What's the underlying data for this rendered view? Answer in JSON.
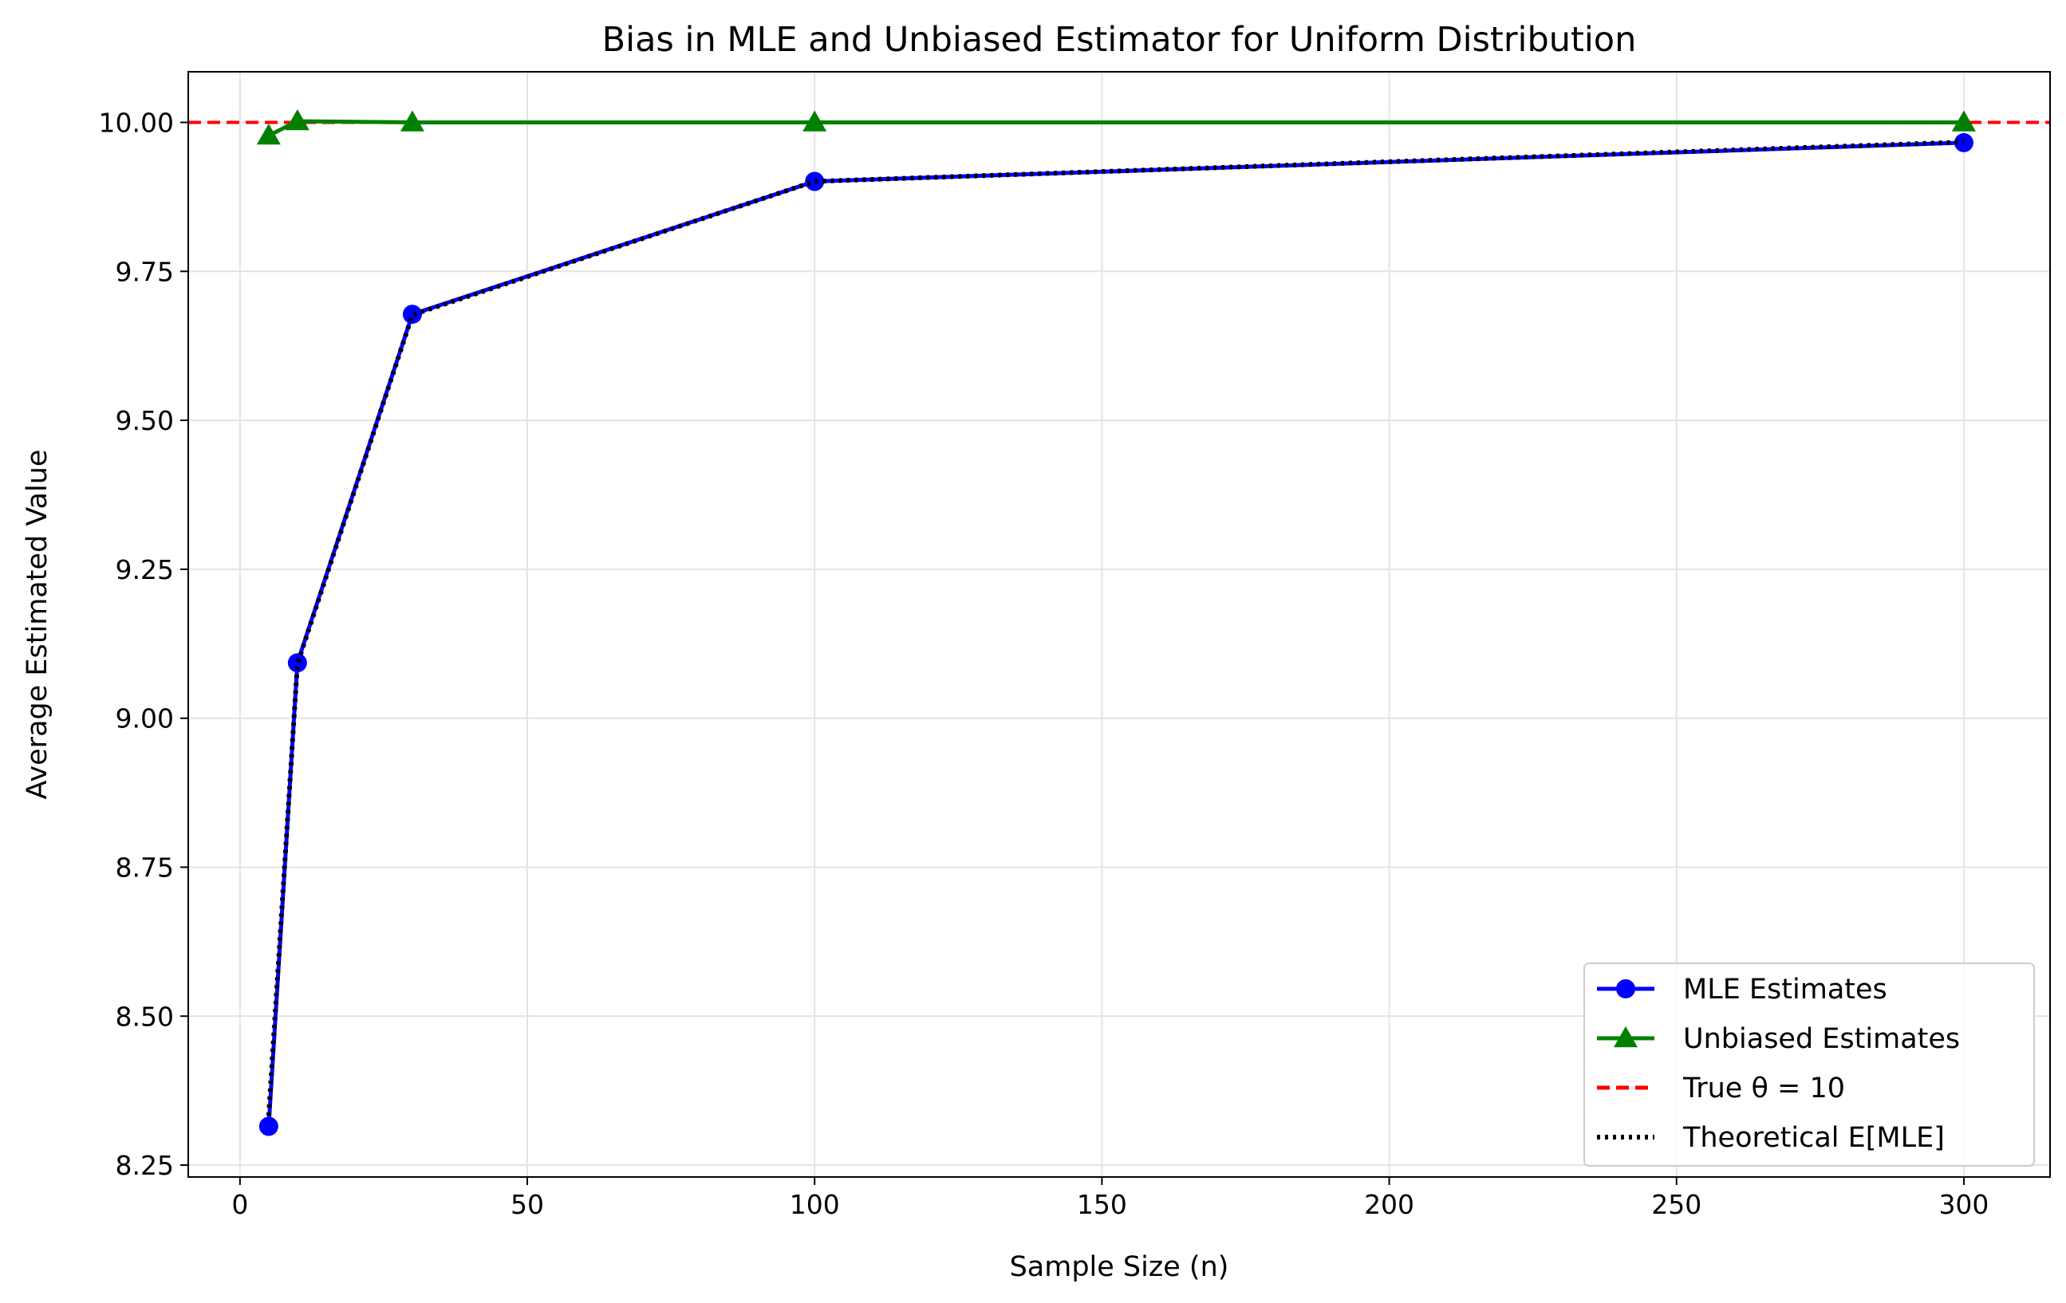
{
  "chart_data": {
    "type": "line",
    "title": "Bias in MLE and Unbiased Estimator for Uniform Distribution",
    "xlabel": "Sample Size (n)",
    "ylabel": "Average Estimated Value",
    "xlim": [
      -9,
      315
    ],
    "ylim": [
      8.23,
      10.085
    ],
    "xticks": [
      0,
      50,
      100,
      150,
      200,
      250,
      300
    ],
    "yticks": [
      8.25,
      8.5,
      8.75,
      9.0,
      9.25,
      9.5,
      9.75,
      10.0
    ],
    "xtick_labels": [
      "0",
      "50",
      "100",
      "150",
      "200",
      "250",
      "300"
    ],
    "ytick_labels": [
      "8.25",
      "8.50",
      "8.75",
      "9.00",
      "9.25",
      "9.50",
      "9.75",
      "10.00"
    ],
    "grid": true,
    "legend_position": "lower-right",
    "x": [
      5,
      10,
      30,
      100,
      300
    ],
    "series": [
      {
        "name": "MLE Estimates",
        "color": "#0000ff",
        "style": "solid",
        "marker": "circle",
        "values": [
          8.315,
          9.093,
          9.678,
          9.901,
          9.966
        ]
      },
      {
        "name": "Unbiased Estimates",
        "color": "#008000",
        "style": "solid",
        "marker": "triangle",
        "values": [
          9.978,
          10.002,
          10.0,
          10.0,
          10.0
        ]
      },
      {
        "name": "Theoretical E[MLE]",
        "color": "#000000",
        "style": "dotted",
        "marker": "none",
        "values": [
          8.333,
          9.091,
          9.677,
          9.901,
          9.967
        ]
      }
    ],
    "reference_line": {
      "name": "True θ = 10",
      "color": "#ff0000",
      "style": "dashed",
      "y": 10.0
    },
    "legend_entries": [
      {
        "label": "MLE Estimates",
        "color": "#0000ff",
        "style": "solid",
        "marker": "circle"
      },
      {
        "label": "Unbiased Estimates",
        "color": "#008000",
        "style": "solid",
        "marker": "triangle"
      },
      {
        "label": "True θ = 10",
        "color": "#ff0000",
        "style": "dashed",
        "marker": "none"
      },
      {
        "label": "Theoretical E[MLE]",
        "color": "#000000",
        "style": "dotted",
        "marker": "none"
      }
    ]
  }
}
